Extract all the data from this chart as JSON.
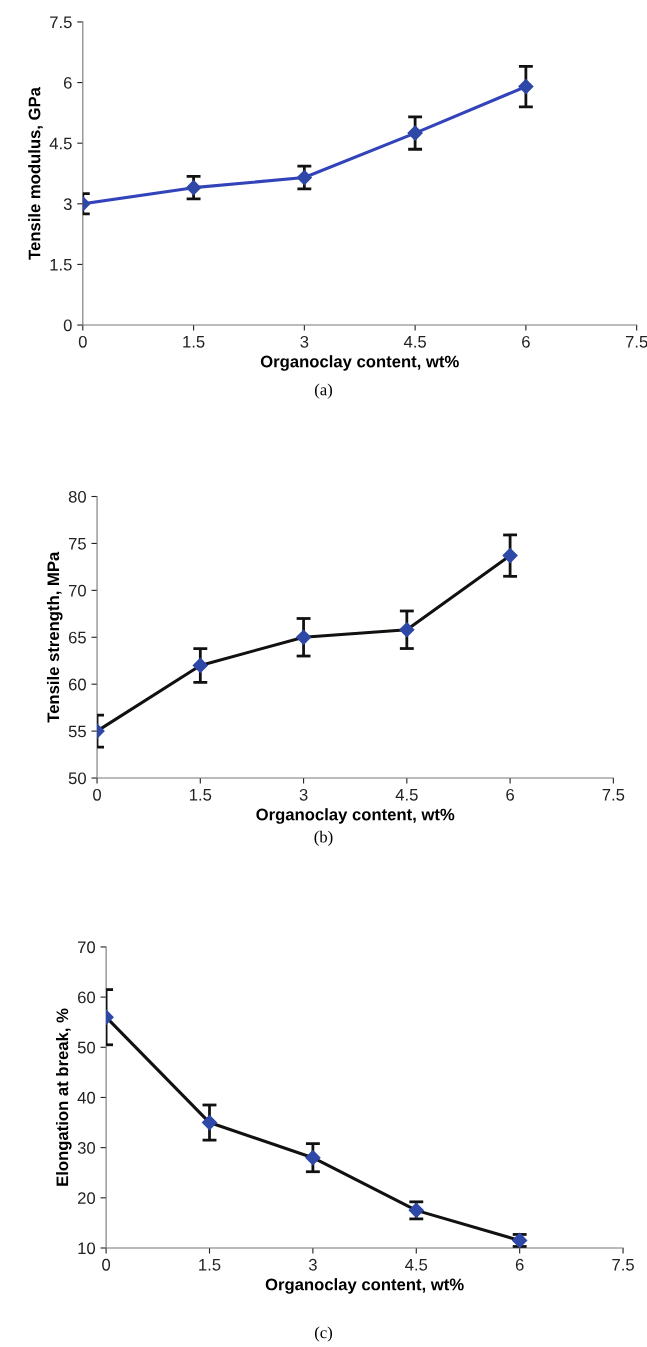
{
  "chart_data": [
    {
      "type": "line",
      "xlabel": "Organoclay content, wt%",
      "ylabel": "Tensile modulus, GPa",
      "annotations": [
        "(a)"
      ],
      "x": [
        0,
        1.5,
        3,
        4.5,
        6
      ],
      "marker": "diamond",
      "line_style": "solid",
      "grid": false,
      "legend": false,
      "series": [
        {
          "color": "#3344bb",
          "values": [
            3.0,
            3.4,
            3.65,
            4.75,
            5.9
          ],
          "errors": [
            0.25,
            0.28,
            0.28,
            0.4,
            0.5
          ]
        }
      ],
      "xlim": [
        0,
        7.5
      ],
      "xticks": [
        0,
        1.5,
        3,
        4.5,
        6,
        7.5
      ],
      "ylim": [
        0,
        7.5
      ],
      "yticks": [
        0,
        1.5,
        3,
        4.5,
        6,
        7.5
      ]
    },
    {
      "type": "line",
      "xlabel": "Organoclay content, wt%",
      "ylabel": "Tensile strength, MPa",
      "annotations": [
        "(b)"
      ],
      "x": [
        0,
        1.5,
        3,
        4.5,
        6
      ],
      "marker": "diamond",
      "line_style": "solid",
      "grid": false,
      "legend": false,
      "series": [
        {
          "color": "#111111",
          "values": [
            55,
            62,
            65,
            65.8,
            73.7
          ],
          "errors": [
            1.7,
            1.8,
            2,
            2,
            2.2
          ]
        }
      ],
      "xlim": [
        0,
        7.5
      ],
      "xticks": [
        0,
        1.5,
        3,
        4.5,
        6,
        7.5
      ],
      "ylim": [
        50,
        80
      ],
      "yticks": [
        50,
        55,
        60,
        65,
        70,
        75,
        80
      ]
    },
    {
      "type": "line",
      "xlabel": "Organoclay content, wt%",
      "ylabel": "Elongation at break, %",
      "annotations": [
        "(c)"
      ],
      "x": [
        0,
        1.5,
        3,
        4.5,
        6
      ],
      "marker": "diamond",
      "line_style": "solid",
      "grid": false,
      "legend": false,
      "series": [
        {
          "color": "#111111",
          "values": [
            56,
            35,
            28,
            17.5,
            11.5
          ],
          "errors": [
            5.5,
            3.5,
            2.8,
            1.7,
            1.2
          ]
        }
      ],
      "xlim": [
        0,
        7.5
      ],
      "xticks": [
        0,
        1.5,
        3,
        4.5,
        6,
        7.5
      ],
      "ylim": [
        10,
        70
      ],
      "yticks": [
        10,
        20,
        30,
        40,
        50,
        60,
        70
      ]
    }
  ]
}
